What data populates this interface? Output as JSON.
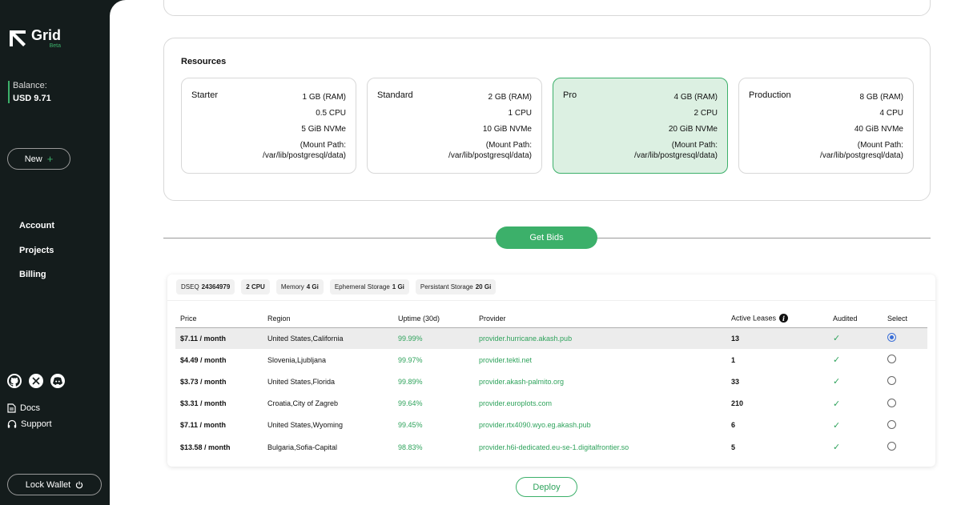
{
  "app": {
    "name": "Grid",
    "badge": "Beta"
  },
  "balance": {
    "label": "Balance:",
    "value": "USD 9.71"
  },
  "new_button": {
    "label": "New",
    "icon": "plus-icon"
  },
  "nav": {
    "items": [
      {
        "label": "Account"
      },
      {
        "label": "Projects"
      },
      {
        "label": "Billing"
      }
    ]
  },
  "footer_links": [
    {
      "label": "Docs",
      "icon": "doc-icon"
    },
    {
      "label": "Support",
      "icon": "headset-icon"
    }
  ],
  "socials": [
    "github-icon",
    "x-icon",
    "discord-icon"
  ],
  "lock_wallet": {
    "label": "Lock Wallet",
    "icon": "power-icon"
  },
  "resources": {
    "title": "Resources",
    "tiers": [
      {
        "name": "Starter",
        "ram": "1 GB (RAM)",
        "cpu": "0.5 CPU",
        "storage": "5 GiB NVMe",
        "mount_label": "(Mount Path:",
        "mount_path": "/var/lib/postgresql/data)",
        "selected": false
      },
      {
        "name": "Standard",
        "ram": "2 GB (RAM)",
        "cpu": "1 CPU",
        "storage": "10 GiB NVMe",
        "mount_label": "(Mount Path:",
        "mount_path": "/var/lib/postgresql/data)",
        "selected": false
      },
      {
        "name": "Pro",
        "ram": "4 GB (RAM)",
        "cpu": "2 CPU",
        "storage": "20 GiB NVMe",
        "mount_label": "(Mount Path:",
        "mount_path": "/var/lib/postgresql/data)",
        "selected": true
      },
      {
        "name": "Production",
        "ram": "8 GB (RAM)",
        "cpu": "4 CPU",
        "storage": "40 GiB NVMe",
        "mount_label": "(Mount Path:",
        "mount_path": "/var/lib/postgresql/data)",
        "selected": false
      }
    ]
  },
  "get_bids": {
    "label": "Get Bids"
  },
  "deployment": {
    "dseq_label": "DSEQ",
    "dseq_value": "24364979",
    "cpu": "2 CPU",
    "memory_label": "Memory",
    "memory_value": "4 Gi",
    "ephemeral_label": "Ephemeral Storage",
    "ephemeral_value": "1 Gi",
    "persistent_label": "Persistant Storage",
    "persistent_value": "20 Gi"
  },
  "bids_table": {
    "headers": {
      "price": "Price",
      "region": "Region",
      "uptime": "Uptime (30d)",
      "provider": "Provider",
      "leases": "Active Leases",
      "audited": "Audited",
      "select": "Select"
    },
    "rows": [
      {
        "price": "$7.11 / month",
        "region": "United States,California",
        "uptime": "99.99%",
        "provider": "provider.hurricane.akash.pub",
        "leases": "13",
        "audited": "✓",
        "selected": true
      },
      {
        "price": "$4.49 / month",
        "region": "Slovenia,Ljubljana",
        "uptime": "99.97%",
        "provider": "provider.tekti.net",
        "leases": "1",
        "audited": "✓",
        "selected": false
      },
      {
        "price": "$3.73 / month",
        "region": "United States,Florida",
        "uptime": "99.89%",
        "provider": "provider.akash-palmito.org",
        "leases": "33",
        "audited": "✓",
        "selected": false
      },
      {
        "price": "$3.31 / month",
        "region": "Croatia,City of Zagreb",
        "uptime": "99.64%",
        "provider": "provider.europlots.com",
        "leases": "210",
        "audited": "✓",
        "selected": false
      },
      {
        "price": "$7.11 / month",
        "region": "United States,Wyoming",
        "uptime": "99.45%",
        "provider": "provider.rtx4090.wyo.eg.akash.pub",
        "leases": "6",
        "audited": "✓",
        "selected": false
      },
      {
        "price": "$13.58 / month",
        "region": "Bulgaria,Sofia-Capital",
        "uptime": "98.83%",
        "provider": "provider.h6i-dedicated.eu-se-1.digitalfrontier.so",
        "leases": "5",
        "audited": "✓",
        "selected": false
      }
    ]
  },
  "deploy_button": {
    "label": "Deploy"
  },
  "colors": {
    "accent": "#3cb06a",
    "sidebar_bg": "#141c1c",
    "selected_tier_bg": "#dcf0e2"
  }
}
